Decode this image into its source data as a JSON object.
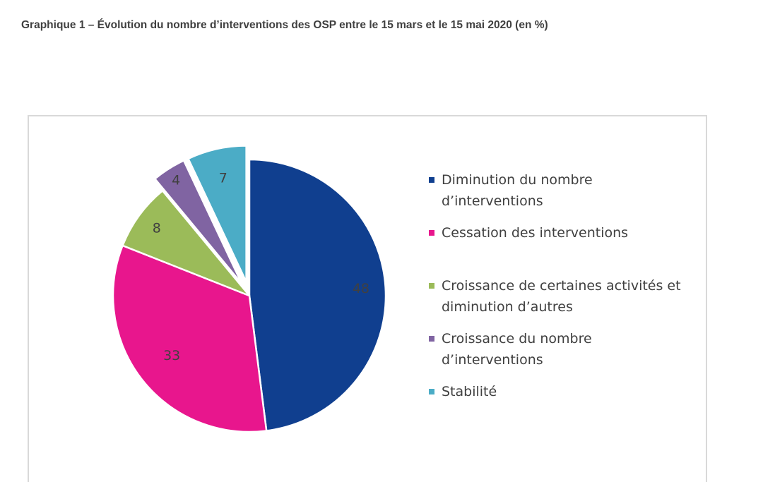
{
  "title": "Graphique 1 – Évolution du nombre d’interventions des OSP entre le 15 mars et le 15 mai 2020 (en %)",
  "chart_data": {
    "type": "pie",
    "slices": [
      {
        "label": "Diminution du nombre\nd’interventions",
        "value": 48,
        "color": "#103f8f",
        "exploded": false
      },
      {
        "label": "Cessation des interventions",
        "value": 33,
        "color": "#e8168d",
        "exploded": false
      },
      {
        "label": "Croissance de certaines activités et\ndiminution d’autres",
        "value": 8,
        "color": "#9bbb59",
        "exploded": false
      },
      {
        "label": "Croissance du nombre\nd’interventions",
        "value": 4,
        "color": "#8064a2",
        "exploded": true
      },
      {
        "label": "Stabilité",
        "value": 7,
        "color": "#4bacc6",
        "exploded": true
      }
    ],
    "legend_position": "right"
  }
}
